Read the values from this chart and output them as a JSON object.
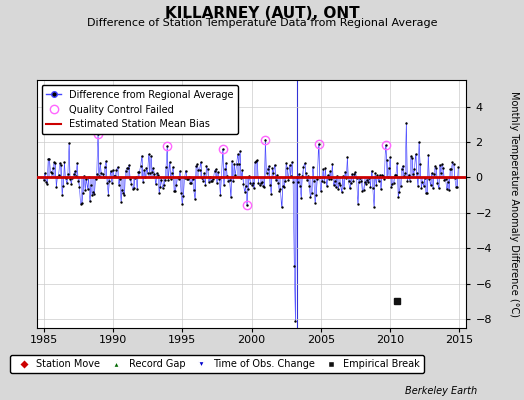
{
  "title": "KILLARNEY (AUT), ONT",
  "subtitle": "Difference of Station Temperature Data from Regional Average",
  "ylabel": "Monthly Temperature Anomaly Difference (°C)",
  "xlim": [
    1984.5,
    2015.5
  ],
  "ylim": [
    -8.5,
    5.5
  ],
  "yticks": [
    -8,
    -6,
    -4,
    -2,
    0,
    2,
    4
  ],
  "xticks": [
    1985,
    1990,
    1995,
    2000,
    2005,
    2010,
    2015
  ],
  "background_color": "#d8d8d8",
  "plot_bg_color": "#ffffff",
  "mean_bias": 0.05,
  "seed": 12345,
  "colors": {
    "line": "#4444ff",
    "stem": "#8888ff",
    "dots": "#000000",
    "qc_circle": "#ff66ff",
    "bias_line": "#cc0000",
    "station_move": "#cc0000",
    "record_gap": "#006600",
    "obs_change": "#0000cc",
    "emp_break": "#111111"
  },
  "qc_indices": [
    47,
    107,
    155,
    176,
    192,
    238,
    296
  ],
  "big_dip_idx": 217,
  "big_dip_val": -5.0,
  "long_line_idx": 218,
  "long_line_val": -8.1,
  "spike_idx": 314,
  "spike_val": 3.1,
  "spike2_idx": 325,
  "spike2_val": 2.0,
  "empirical_break_x": 2010.5,
  "empirical_break_y": -7.0,
  "obs_change_x": 2003.25,
  "berkeley_earth_text": "Berkeley Earth"
}
